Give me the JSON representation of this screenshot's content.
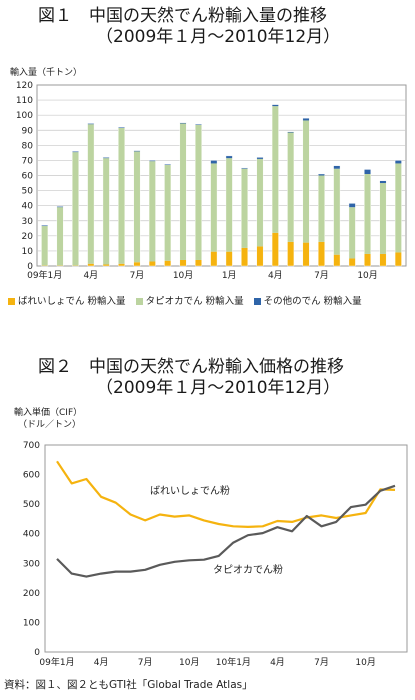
{
  "source": "資料：図１、図２ともGTI社「Global Trade Atlas」",
  "colors": {
    "potato": "#f5b30f",
    "tapioca": "#bcd4a0",
    "other": "#2f64a8",
    "potato_line": "#f5b30f",
    "tapioca_line": "#5a5a5a"
  },
  "chart_data": [
    {
      "type": "bar",
      "stacked": true,
      "title": "図１　中国の天然でん粉輸入量の推移",
      "subtitle": "（2009年１月〜2010年12月）",
      "ylabel": "輸入量（千トン）",
      "ylim": [
        0,
        120
      ],
      "yticks": [
        0,
        10,
        20,
        30,
        40,
        50,
        60,
        70,
        80,
        90,
        100,
        110,
        120
      ],
      "grid": true,
      "legend_position": "bottom",
      "categories": [
        "2009-01",
        "2009-02",
        "2009-03",
        "2009-04",
        "2009-05",
        "2009-06",
        "2009-07",
        "2009-08",
        "2009-09",
        "2009-10",
        "2009-11",
        "2009-12",
        "2010-01",
        "2010-02",
        "2010-03",
        "2010-04",
        "2010-05",
        "2010-06",
        "2010-07",
        "2010-08",
        "2010-09",
        "2010-10",
        "2010-11",
        "2010-12"
      ],
      "tick_labels": [
        {
          "index": 0,
          "label": "09年1月"
        },
        {
          "index": 3,
          "label": "4月"
        },
        {
          "index": 6,
          "label": "7月"
        },
        {
          "index": 9,
          "label": "10月"
        },
        {
          "index": 12,
          "label": "1月"
        },
        {
          "index": 15,
          "label": "4月"
        },
        {
          "index": 18,
          "label": "7月"
        },
        {
          "index": 21,
          "label": "10月"
        }
      ],
      "series": [
        {
          "name": "ばれいしょでん 粉輸入量",
          "color": "#f5b30f",
          "values": [
            0.3,
            0.3,
            0.3,
            1.5,
            1.0,
            1.5,
            2.5,
            3.0,
            3.5,
            4.0,
            4.0,
            9.5,
            9.5,
            12.0,
            13.0,
            22.0,
            16.0,
            15.5,
            16.0,
            7.5,
            5.0,
            8.0,
            8.0,
            9.0
          ]
        },
        {
          "name": "タピオカでん 粉輸入量",
          "color": "#bcd4a0",
          "values": [
            26.2,
            38.7,
            75.2,
            92.5,
            70.5,
            90.0,
            73.5,
            66.5,
            63.5,
            90.5,
            89.5,
            58.5,
            62.0,
            52.5,
            58.0,
            84.0,
            72.5,
            81.0,
            44.0,
            57.0,
            34.0,
            53.0,
            47.0,
            59.0
          ]
        },
        {
          "name": "その他のでん 粉輸入量",
          "color": "#2f64a8",
          "values": [
            0.5,
            0.5,
            0.5,
            0.5,
            0.5,
            0.5,
            0.5,
            0.5,
            0.5,
            0.5,
            0.5,
            2.0,
            1.5,
            0.5,
            1.0,
            1.0,
            0.5,
            1.5,
            1.0,
            2.0,
            2.5,
            3.0,
            1.5,
            2.0
          ]
        }
      ]
    },
    {
      "type": "line",
      "title": "図２　中国の天然でん粉輸入価格の推移",
      "subtitle": "（2009年１月〜2010年12月）",
      "ylabel": "輸入単価（CIF）",
      "ylabel2": "（ドル／トン）",
      "ylim": [
        0,
        700
      ],
      "yticks": [
        0,
        100,
        200,
        300,
        400,
        500,
        600,
        700
      ],
      "grid": false,
      "x": [
        "2009-01",
        "2009-02",
        "2009-03",
        "2009-04",
        "2009-05",
        "2009-06",
        "2009-07",
        "2009-08",
        "2009-09",
        "2009-10",
        "2009-11",
        "2009-12",
        "2010-01",
        "2010-02",
        "2010-03",
        "2010-04",
        "2010-05",
        "2010-06",
        "2010-07",
        "2010-08",
        "2010-09",
        "2010-10",
        "2010-11",
        "2010-12"
      ],
      "tick_labels": [
        {
          "index": 0,
          "label": "09年1月"
        },
        {
          "index": 3,
          "label": "4月"
        },
        {
          "index": 6,
          "label": "7月"
        },
        {
          "index": 9,
          "label": "10月"
        },
        {
          "index": 12,
          "label": "10年1月"
        },
        {
          "index": 15,
          "label": "4月"
        },
        {
          "index": 18,
          "label": "7月"
        },
        {
          "index": 21,
          "label": "10月"
        }
      ],
      "series": [
        {
          "name": "ばれいしょでん粉",
          "color": "#f5b30f",
          "values": [
            645,
            570,
            585,
            525,
            505,
            465,
            445,
            465,
            458,
            462,
            445,
            433,
            425,
            423,
            425,
            443,
            440,
            455,
            462,
            453,
            462,
            470,
            550,
            548
          ]
        },
        {
          "name": "タピオカでん粉",
          "color": "#5a5a5a",
          "values": [
            315,
            265,
            255,
            265,
            272,
            272,
            278,
            295,
            305,
            310,
            312,
            325,
            370,
            395,
            402,
            422,
            408,
            460,
            425,
            440,
            490,
            498,
            545,
            562
          ]
        }
      ]
    }
  ]
}
